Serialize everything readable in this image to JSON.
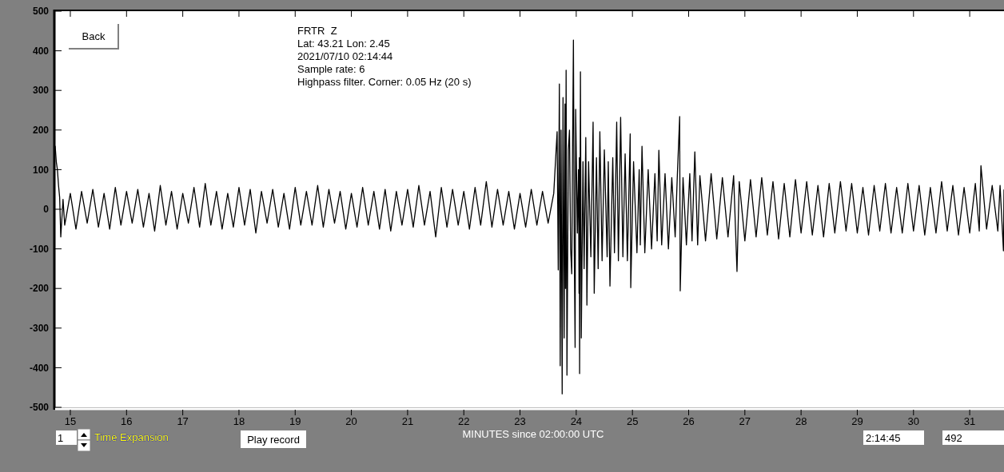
{
  "chart_data": {
    "type": "line",
    "title": "FRTR  Z",
    "xlabel": "MINUTES since 02:00:00 UTC",
    "annotations": [
      "Lat: 43.21 Lon: 2.45",
      "2021/07/10 02:14:44",
      "Sample rate: 6",
      "Highpass filter. Corner: 0.05 Hz (20 s)",
      "Back",
      "Time Expansion",
      "Play record",
      "1",
      "2:14:45",
      "492"
    ],
    "xlim": [
      14.73,
      31.61
    ],
    "xticks": [
      15,
      16,
      17,
      18,
      19,
      20,
      21,
      22,
      23,
      24,
      25,
      26,
      27,
      28,
      29,
      30,
      31
    ],
    "ylim": [
      -500,
      500
    ],
    "yticks": [
      -500,
      -400,
      -300,
      -200,
      -100,
      0,
      100,
      200,
      300,
      400,
      500
    ],
    "grid": false,
    "marker": "none",
    "line_style": "solid",
    "series": [
      {
        "color": "#000000",
        "x": [
          14.73,
          14.75,
          14.77,
          14.79,
          14.81,
          14.83,
          14.87,
          14.9,
          15.0,
          15.1,
          15.2,
          15.3,
          15.4,
          15.5,
          15.6,
          15.7,
          15.8,
          15.9,
          16.0,
          16.1,
          16.2,
          16.3,
          16.4,
          16.5,
          16.6,
          16.7,
          16.8,
          16.9,
          17.0,
          17.1,
          17.2,
          17.3,
          17.4,
          17.5,
          17.6,
          17.7,
          17.8,
          17.9,
          18.0,
          18.1,
          18.2,
          18.3,
          18.4,
          18.5,
          18.6,
          18.7,
          18.8,
          18.9,
          19.0,
          19.1,
          19.2,
          19.3,
          19.4,
          19.5,
          19.6,
          19.7,
          19.8,
          19.9,
          20.0,
          20.1,
          20.2,
          20.3,
          20.4,
          20.5,
          20.6,
          20.7,
          20.8,
          20.9,
          21.0,
          21.1,
          21.2,
          21.3,
          21.4,
          21.5,
          21.6,
          21.7,
          21.8,
          21.9,
          22.0,
          22.1,
          22.2,
          22.3,
          22.4,
          22.5,
          22.6,
          22.7,
          22.8,
          22.9,
          23.0,
          23.1,
          23.2,
          23.3,
          23.4,
          23.5,
          23.6,
          23.66,
          23.68,
          23.7,
          23.715,
          23.73,
          23.75,
          23.765,
          23.785,
          23.8,
          23.81,
          23.82,
          23.835,
          23.86,
          23.88,
          23.9,
          23.92,
          23.935,
          23.95,
          23.965,
          23.98,
          23.99,
          24.02,
          24.04,
          24.05,
          24.055,
          24.06,
          24.075,
          24.09,
          24.12,
          24.14,
          24.17,
          24.19,
          24.22,
          24.26,
          24.3,
          24.32,
          24.36,
          24.39,
          24.42,
          24.46,
          24.5,
          24.55,
          24.57,
          24.6,
          24.65,
          24.68,
          24.72,
          24.75,
          24.79,
          24.83,
          24.87,
          24.91,
          24.96,
          24.97,
          25.02,
          25.08,
          25.12,
          25.14,
          25.17,
          25.22,
          25.28,
          25.34,
          25.4,
          25.44,
          25.47,
          25.52,
          25.58,
          25.64,
          25.7,
          25.76,
          25.8,
          25.84,
          25.85,
          25.9,
          25.96,
          26.02,
          26.06,
          26.11,
          26.16,
          26.2,
          26.3,
          26.4,
          26.5,
          26.6,
          26.7,
          26.8,
          26.86,
          26.9,
          27.0,
          27.1,
          27.2,
          27.3,
          27.4,
          27.5,
          27.6,
          27.7,
          27.8,
          27.9,
          28.0,
          28.1,
          28.2,
          28.3,
          28.4,
          28.5,
          28.6,
          28.7,
          28.8,
          28.9,
          29.0,
          29.1,
          29.2,
          29.3,
          29.4,
          29.5,
          29.6,
          29.7,
          29.8,
          29.9,
          30.0,
          30.1,
          30.2,
          30.3,
          30.4,
          30.5,
          30.6,
          30.7,
          30.8,
          30.9,
          31.0,
          31.1,
          31.17,
          31.2,
          31.3,
          31.4,
          31.5,
          31.54,
          31.6,
          31.61
        ],
        "values": [
          160,
          120,
          100,
          60,
          30,
          -70,
          25,
          -40,
          40,
          -50,
          45,
          -35,
          50,
          -45,
          40,
          -50,
          55,
          -40,
          45,
          -35,
          50,
          -45,
          40,
          -55,
          60,
          -40,
          45,
          -50,
          40,
          -35,
          55,
          -45,
          65,
          -40,
          45,
          -50,
          40,
          -45,
          55,
          -40,
          50,
          -60,
          45,
          -35,
          50,
          -45,
          40,
          -50,
          55,
          -40,
          45,
          -40,
          60,
          -45,
          50,
          -35,
          45,
          -50,
          40,
          -45,
          55,
          -40,
          45,
          -50,
          50,
          -55,
          45,
          -40,
          50,
          -45,
          60,
          -40,
          45,
          -70,
          55,
          -45,
          50,
          -40,
          45,
          -50,
          55,
          -40,
          70,
          -45,
          50,
          -40,
          45,
          -50,
          40,
          -45,
          50,
          -40,
          45,
          -35,
          40,
          196,
          -153,
          316,
          -395,
          200,
          -466,
          282,
          -325,
          266,
          -200,
          351,
          -419,
          150,
          200,
          -100,
          -163,
          150,
          427,
          -100,
          -349,
          252,
          -60,
          100,
          -212,
          130,
          -415,
          347,
          -325,
          120,
          -150,
          181,
          -242,
          120,
          -120,
          220,
          -212,
          130,
          -150,
          196,
          -130,
          150,
          -120,
          120,
          -194,
          130,
          -110,
          220,
          -130,
          232,
          -120,
          140,
          -130,
          190,
          -198,
          120,
          -110,
          100,
          -90,
          159,
          -110,
          100,
          -100,
          90,
          -80,
          149,
          -90,
          90,
          -100,
          80,
          -70,
          90,
          234,
          -206,
          80,
          -90,
          90,
          -80,
          145,
          -90,
          85,
          -80,
          90,
          -75,
          80,
          -70,
          85,
          -157,
          70,
          -80,
          75,
          -70,
          80,
          -65,
          70,
          -75,
          65,
          -70,
          75,
          -60,
          70,
          -65,
          60,
          -70,
          65,
          -60,
          70,
          -55,
          65,
          -60,
          55,
          -65,
          60,
          -55,
          65,
          -60,
          55,
          -60,
          65,
          -55,
          60,
          -65,
          55,
          -60,
          70,
          -55,
          60,
          -65,
          55,
          -60,
          65,
          -55,
          110,
          -50,
          60,
          -55,
          60,
          -105,
          50
        ]
      }
    ]
  }
}
